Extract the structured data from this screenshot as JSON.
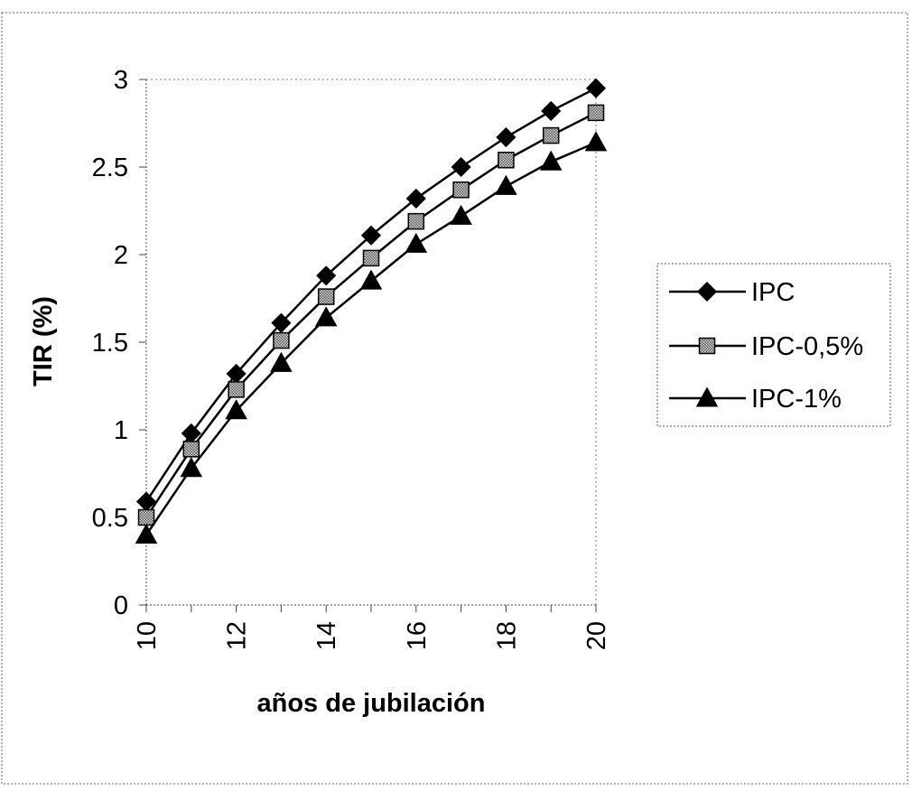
{
  "chart_data": {
    "type": "line",
    "title": "",
    "xlabel": "años de jubilación",
    "ylabel": "TIR (%)",
    "xlim": [
      10,
      20
    ],
    "ylim": [
      0,
      3
    ],
    "xticks": [
      "10",
      "12",
      "14",
      "16",
      "18",
      "20"
    ],
    "yticks": [
      "0",
      "0.5",
      "1",
      "1.5",
      "2",
      "2.5",
      "3"
    ],
    "grid": false,
    "legend_position": "right",
    "x": [
      10,
      11,
      12,
      13,
      14,
      15,
      16,
      17,
      18,
      19,
      20
    ],
    "series": [
      {
        "name": "IPC",
        "marker": "diamond",
        "color": "#000000",
        "values": [
          0.59,
          0.98,
          1.32,
          1.61,
          1.88,
          2.11,
          2.32,
          2.5,
          2.67,
          2.82,
          2.95
        ]
      },
      {
        "name": "IPC-0,5%",
        "marker": "square-hatched",
        "color": "#000000",
        "values": [
          0.5,
          0.89,
          1.23,
          1.51,
          1.76,
          1.98,
          2.19,
          2.37,
          2.54,
          2.68,
          2.81
        ]
      },
      {
        "name": "IPC-1%",
        "marker": "triangle",
        "color": "#000000",
        "values": [
          0.4,
          0.78,
          1.11,
          1.38,
          1.64,
          1.85,
          2.06,
          2.22,
          2.39,
          2.53,
          2.64
        ]
      }
    ]
  }
}
